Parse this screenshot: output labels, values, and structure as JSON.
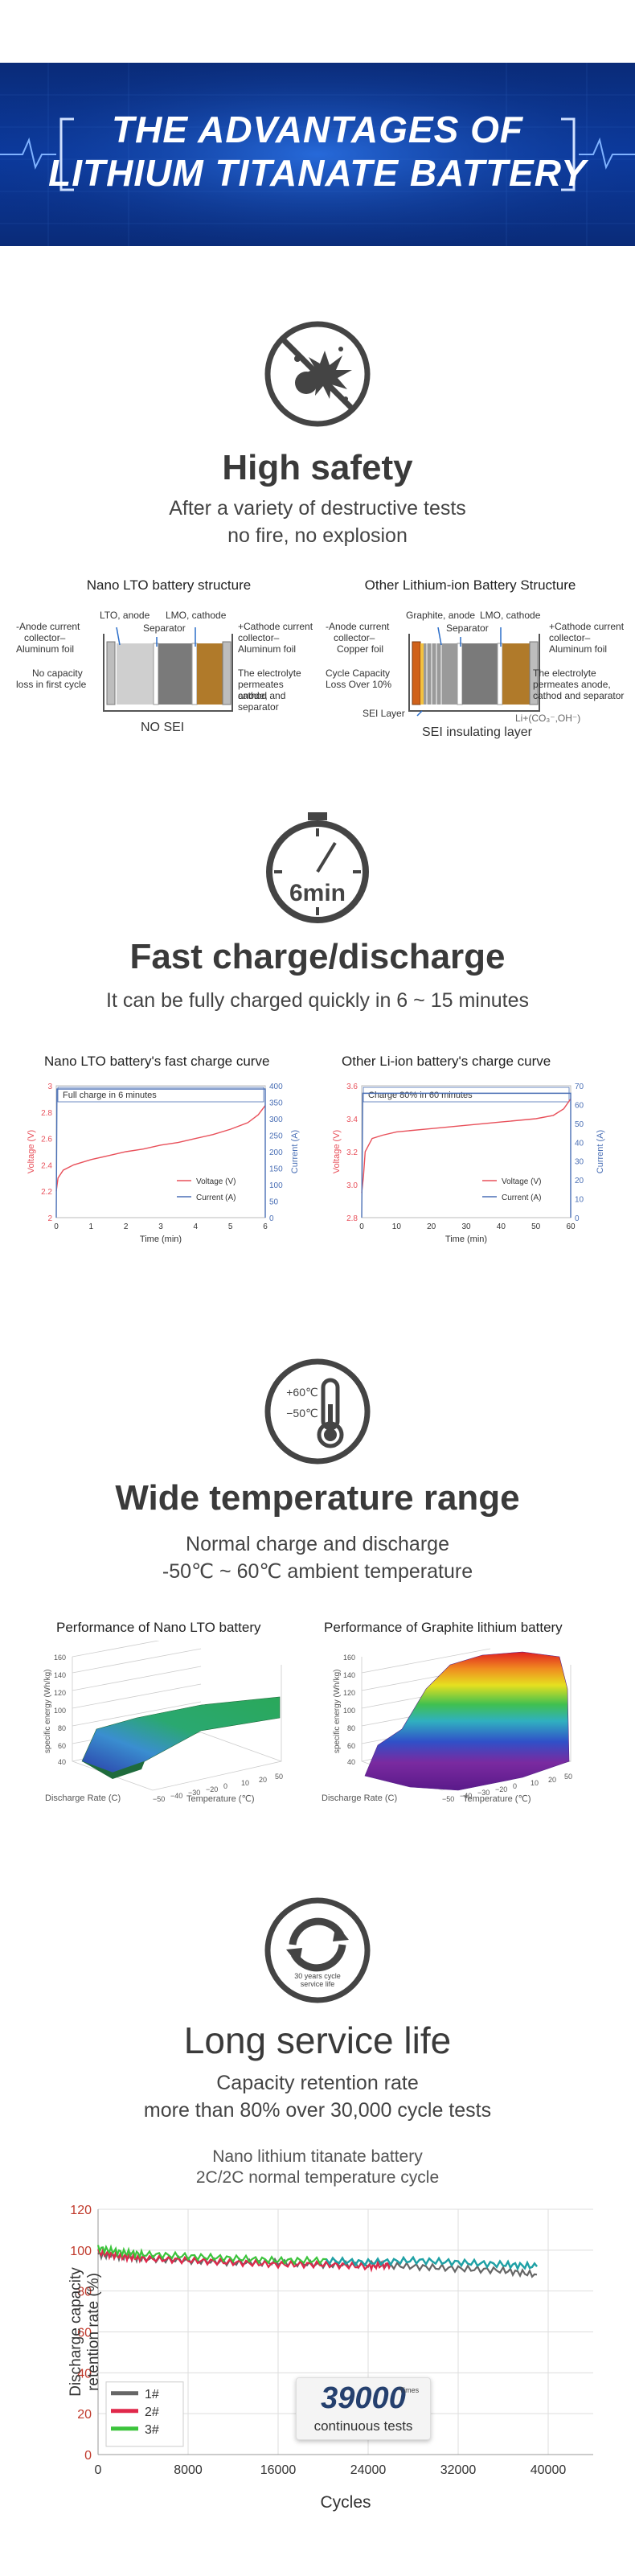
{
  "banner": {
    "line1": "THE ADVANTAGES OF",
    "line2": "LITHIUM TITANATE BATTERY"
  },
  "safety": {
    "title": "High safety",
    "sub1": "After a variety of destructive tests",
    "sub2": "no fire, no explosion",
    "lto": {
      "caption": "Nano LTO battery structure",
      "lbl_anode": "LTO, anode",
      "lbl_sep": "Separator",
      "lbl_cathode": "LMO, cathode",
      "left1": "-Anode current",
      "left2": "collector–",
      "left3": "Aluminum foil",
      "left4": "No capacity",
      "left5": "loss in first cycle",
      "right1": "+Cathode current",
      "right2": "collector–",
      "right3": "Aluminum foil",
      "right4": "The electrolyte",
      "right5": "permeates anode,",
      "right6": "cathod and separator",
      "bottom": "NO SEI"
    },
    "other": {
      "caption": "Other Lithium-ion Battery Structure",
      "lbl_anode": "Graphite, anode",
      "lbl_sep": "Separator",
      "lbl_cathode": "LMO, cathode",
      "left1": "-Anode current",
      "left2": "collector–",
      "left3": "Copper foil",
      "left4": "Cycle Capacity",
      "left5": "Loss Over 10%",
      "left6": "SEI Layer",
      "right1": "+Cathode current",
      "right2": "collector–",
      "right3": "Aluminum foil",
      "right4": "The electrolyte",
      "right5": "permeates anode,",
      "right6": "cathod and separator",
      "li": "Li+(CO₃⁻,OH⁻)",
      "bottom": "SEI insulating layer"
    }
  },
  "charge": {
    "icon_text": "6min",
    "title": "Fast charge/discharge",
    "sub": "It can be fully charged quickly in 6 ~ 15 minutes",
    "chart1": {
      "caption": "Nano LTO battery's fast charge curve",
      "note": "Full charge in 6 minutes"
    },
    "chart2": {
      "caption": "Other Li-ion battery's charge curve",
      "note": "Charge 80% in 60 minutes"
    }
  },
  "temp": {
    "hot": "+60℃",
    "cold": "−50℃",
    "title": "Wide temperature range",
    "sub1": "Normal charge and discharge",
    "sub2": "-50℃ ~ 60℃ ambient temperature",
    "chart1": {
      "caption": "Performance of Nano LTO battery"
    },
    "chart2": {
      "caption": "Performance of Graphite lithium battery"
    },
    "zlabel": "specific energy (Wh/kg)",
    "xlabel": "Discharge Rate (C)",
    "ylabel": "Temperature (℃)"
  },
  "life": {
    "icon_text1": "30 years cycle",
    "icon_text2": "service life",
    "title": "Long service life",
    "sub1": "Capacity retention rate",
    "sub2": "more than 80% over 30,000 cycle tests",
    "chart_title1": "Nano lithium titanate battery",
    "chart_title2": "2C/2C normal temperature cycle",
    "badge_number": "39000",
    "badge_times": "Times",
    "badge_text": "continuous tests"
  },
  "chart_data": [
    {
      "type": "line",
      "title": "Nano LTO battery's fast charge curve",
      "xlabel": "Time (min)",
      "ylabel": "Voltage (V)",
      "y2label": "Current (A)",
      "xlim": [
        0,
        6
      ],
      "ylim": [
        2,
        3
      ],
      "y2lim": [
        0,
        400
      ],
      "xticks": [
        "0",
        "1",
        "2",
        "3",
        "4",
        "5",
        "6"
      ],
      "yticks": [
        "2",
        "2.2",
        "2.4",
        "2.6",
        "2.8",
        "3"
      ],
      "y2ticks": [
        "0",
        "50",
        "100",
        "150",
        "200",
        "250",
        "300",
        "350",
        "400"
      ],
      "series": [
        {
          "name": "Voltage (V)",
          "axis": "left",
          "x": [
            0,
            0.05,
            0.2,
            0.5,
            1,
            1.5,
            2,
            2.5,
            3,
            3.5,
            4,
            4.5,
            5,
            5.5,
            5.8,
            6
          ],
          "values": [
            2.2,
            2.3,
            2.36,
            2.4,
            2.44,
            2.47,
            2.5,
            2.52,
            2.55,
            2.57,
            2.6,
            2.63,
            2.67,
            2.72,
            2.78,
            2.85
          ]
        },
        {
          "name": "Current (A)",
          "axis": "right",
          "x": [
            0,
            0.02,
            6,
            6
          ],
          "values": [
            0,
            390,
            390,
            0
          ]
        }
      ],
      "legend": "bottom-right"
    },
    {
      "type": "line",
      "title": "Other Li-ion battery's charge curve",
      "xlabel": "Time (min)",
      "ylabel": "Voltage (V)",
      "y2label": "Current (A)",
      "xlim": [
        0,
        60
      ],
      "ylim": [
        2.8,
        3.6
      ],
      "y2lim": [
        0,
        70
      ],
      "xticks": [
        "0",
        "10",
        "20",
        "30",
        "40",
        "50",
        "60"
      ],
      "yticks": [
        "2.8",
        "3.0",
        "3.2",
        "3.4",
        "3.6"
      ],
      "y2ticks": [
        "0",
        "10",
        "20",
        "30",
        "40",
        "50",
        "60",
        "70"
      ],
      "series": [
        {
          "name": "Voltage (V)",
          "axis": "left",
          "x": [
            0,
            0.5,
            1,
            3,
            6,
            10,
            20,
            30,
            40,
            50,
            55,
            58,
            60
          ],
          "values": [
            2.95,
            3.05,
            3.2,
            3.28,
            3.3,
            3.32,
            3.34,
            3.36,
            3.38,
            3.4,
            3.42,
            3.46,
            3.52
          ]
        },
        {
          "name": "Current (A)",
          "axis": "right",
          "x": [
            0,
            0.3,
            60,
            60
          ],
          "values": [
            0,
            66,
            66,
            0
          ]
        }
      ],
      "legend": "bottom-right"
    },
    {
      "type": "line",
      "title": "Nano lithium titanate battery 2C/2C normal temperature cycle",
      "xlabel": "Cycles",
      "ylabel": "Discharge capacity retention rate (%)",
      "xlim": [
        0,
        44000
      ],
      "ylim": [
        0,
        120
      ],
      "xticks": [
        "0",
        "8000",
        "16000",
        "24000",
        "32000",
        "40000"
      ],
      "yticks": [
        "0",
        "20",
        "40",
        "60",
        "80",
        "100",
        "120"
      ],
      "series": [
        {
          "name": "1#",
          "x": [
            0,
            2000,
            4000,
            8000,
            12000,
            16000,
            20000,
            24000,
            28000,
            32000,
            36000,
            39000
          ],
          "values": [
            98,
            97,
            96,
            95,
            94,
            94,
            93,
            93,
            92,
            91,
            90,
            88
          ]
        },
        {
          "name": "2#",
          "x": [
            0,
            2000,
            4000,
            8000,
            12000,
            16000,
            20000,
            24000,
            26000
          ],
          "values": [
            99,
            97,
            96,
            95,
            94,
            93,
            93,
            92,
            93
          ]
        },
        {
          "name": "3#",
          "x": [
            0,
            2000,
            4000,
            8000,
            12000,
            16000,
            20000,
            24000,
            28000,
            32000,
            36000,
            39000
          ],
          "values": [
            101,
            99,
            98,
            97,
            96,
            95,
            95,
            94,
            95,
            94,
            93,
            92
          ]
        }
      ],
      "legend": "bottom-left"
    }
  ],
  "colors": {
    "banner": "#0b3aa0",
    "voltage": "#e8505a",
    "current": "#4a6fb5",
    "s1": "#666666",
    "s2": "#e0284a",
    "s3": "#3cc43c",
    "s3b": "#1fa0a8"
  }
}
